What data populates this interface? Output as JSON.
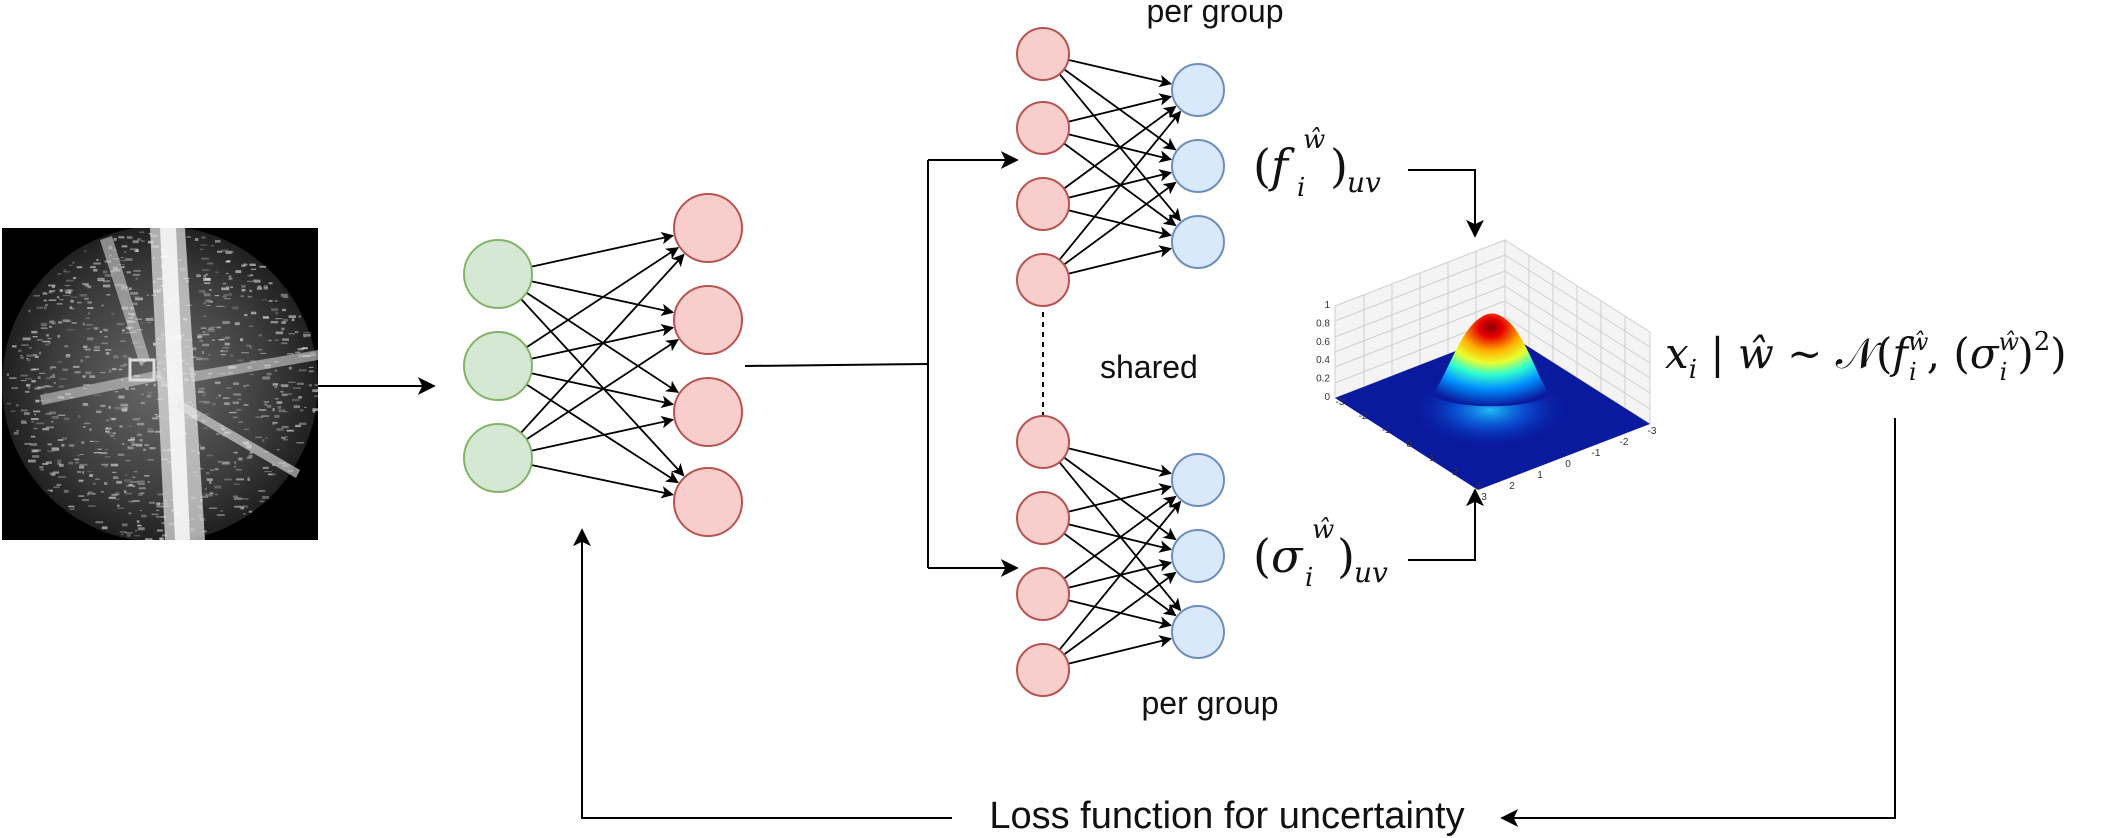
{
  "labels": {
    "per_group_top": "per group",
    "per_group_bottom": "per group",
    "shared": "shared",
    "loss": "Loss function for uncertainty"
  },
  "math": {
    "f": {
      "open": "(",
      "base": "f",
      "hat": "ŵ",
      "sub_i": "i",
      "close": ")",
      "sub": "uv"
    },
    "sigma": {
      "open": "(",
      "base": "σ",
      "hat": "ŵ",
      "sub_i": "i",
      "close": ")",
      "sub": "uv"
    },
    "dist": {
      "x": "x",
      "i": "i",
      "given": " | ",
      "w": "ŵ",
      "sim": " ∼ ",
      "N": "𝒩",
      "open": "(",
      "f": "f",
      "sup1": "ŵ",
      "i1": "i",
      "comma": ", (",
      "sigma": "σ",
      "sup2": "ŵ",
      "i2": "i",
      "close1": ")",
      "sq": "2",
      "close2": ")"
    }
  },
  "plot3d": {
    "z_ticks": [
      "1",
      "0.8",
      "0.6",
      "0.4",
      "0.2",
      "0"
    ],
    "x_ticks": [
      "-3",
      "-2",
      "-1",
      "0",
      "1",
      "2",
      "3"
    ],
    "y_ticks": [
      "3",
      "2",
      "1",
      "0",
      "-1",
      "-2",
      "-3"
    ]
  },
  "colors": {
    "green_fill": "#d5e8d4",
    "green_stroke": "#82b366",
    "red_fill": "#f8cecc",
    "red_stroke": "#b85450",
    "blue_fill": "#dae8fc",
    "blue_stroke": "#6c8ebf",
    "plane": "#0a1a9e"
  }
}
